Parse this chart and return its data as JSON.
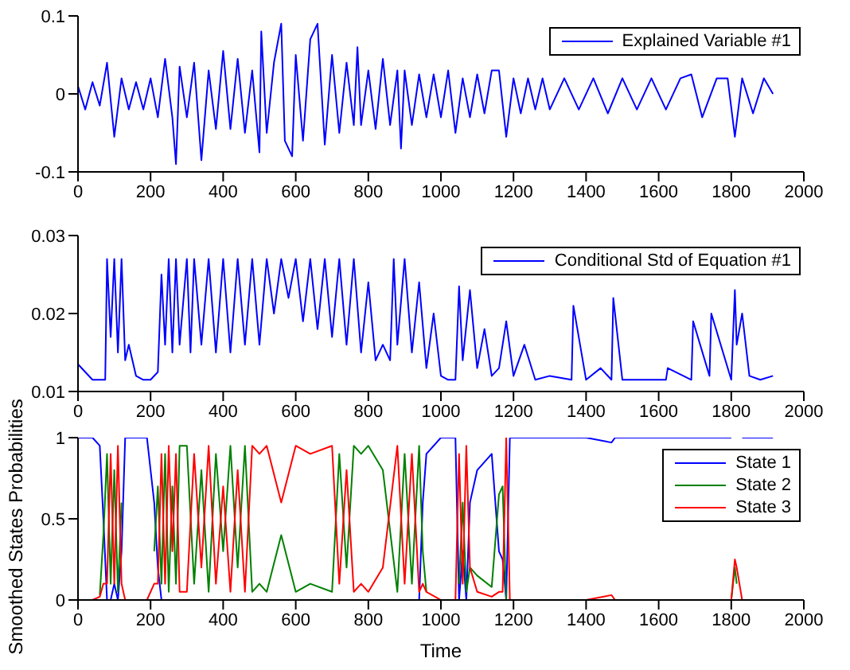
{
  "chart_data": [
    {
      "type": "line",
      "x": [
        0,
        20,
        40,
        60,
        80,
        100,
        120,
        140,
        160,
        180,
        200,
        220,
        240,
        260,
        270,
        280,
        300,
        320,
        340,
        360,
        380,
        400,
        420,
        440,
        460,
        480,
        500,
        505,
        520,
        540,
        560,
        570,
        590,
        600,
        620,
        640,
        660,
        680,
        700,
        720,
        740,
        760,
        770,
        780,
        800,
        820,
        840,
        860,
        880,
        890,
        900,
        920,
        940,
        960,
        980,
        1000,
        1020,
        1040,
        1060,
        1080,
        1100,
        1120,
        1140,
        1160,
        1180,
        1200,
        1220,
        1240,
        1260,
        1280,
        1300,
        1340,
        1380,
        1420,
        1460,
        1500,
        1540,
        1580,
        1620,
        1660,
        1690,
        1720,
        1760,
        1790,
        1810,
        1830,
        1860,
        1890,
        1915
      ],
      "series": [
        {
          "name": "Explained Variable #1",
          "color": "#0000ff",
          "values": [
            0.01,
            -0.02,
            0.015,
            -0.015,
            0.04,
            -0.055,
            0.02,
            -0.02,
            0.015,
            -0.02,
            0.02,
            -0.03,
            0.045,
            -0.03,
            -0.09,
            0.035,
            -0.03,
            0.04,
            -0.085,
            0.03,
            -0.045,
            0.055,
            -0.045,
            0.045,
            -0.05,
            0.03,
            -0.075,
            0.08,
            -0.05,
            0.04,
            0.09,
            -0.06,
            -0.08,
            0.05,
            -0.06,
            0.07,
            0.09,
            -0.065,
            0.05,
            -0.05,
            0.04,
            -0.04,
            0.06,
            -0.04,
            0.03,
            -0.045,
            0.045,
            -0.04,
            0.03,
            -0.07,
            0.03,
            -0.04,
            0.025,
            -0.03,
            0.025,
            -0.03,
            0.03,
            -0.05,
            0.02,
            -0.03,
            0.025,
            -0.025,
            0.03,
            0.03,
            -0.055,
            0.02,
            -0.025,
            0.02,
            -0.02,
            0.02,
            -0.02,
            0.02,
            -0.02,
            0.02,
            -0.025,
            0.02,
            -0.02,
            0.02,
            -0.02,
            0.02,
            0.025,
            -0.03,
            0.02,
            0.02,
            -0.055,
            0.02,
            -0.025,
            0.02,
            0
          ]
        }
      ],
      "xlim": [
        0,
        2000
      ],
      "xticks": [
        0,
        200,
        400,
        600,
        800,
        1000,
        1200,
        1400,
        1600,
        1800,
        2000
      ],
      "ylim": [
        -0.1,
        0.1
      ],
      "yticks": [
        -0.1,
        0,
        0.1
      ],
      "legend": "top right",
      "grid": false
    },
    {
      "type": "line",
      "x": [
        0,
        20,
        40,
        60,
        75,
        80,
        90,
        100,
        110,
        120,
        130,
        140,
        160,
        180,
        200,
        220,
        230,
        240,
        250,
        260,
        270,
        280,
        300,
        310,
        320,
        340,
        360,
        380,
        400,
        420,
        440,
        460,
        480,
        500,
        520,
        540,
        560,
        580,
        600,
        620,
        640,
        660,
        680,
        700,
        720,
        740,
        760,
        780,
        800,
        820,
        840,
        860,
        870,
        880,
        900,
        920,
        940,
        960,
        980,
        1000,
        1020,
        1040,
        1050,
        1060,
        1080,
        1100,
        1120,
        1140,
        1160,
        1180,
        1200,
        1230,
        1260,
        1300,
        1360,
        1365,
        1400,
        1440,
        1470,
        1475,
        1500,
        1560,
        1620,
        1625,
        1690,
        1695,
        1740,
        1745,
        1800,
        1810,
        1815,
        1830,
        1850,
        1880,
        1915
      ],
      "series": [
        {
          "name": "Conditional Std of Equation #1",
          "color": "#0000ff",
          "values": [
            0.0135,
            0.0125,
            0.0115,
            0.0115,
            0.0115,
            0.027,
            0.017,
            0.027,
            0.015,
            0.027,
            0.014,
            0.016,
            0.012,
            0.0115,
            0.0115,
            0.0125,
            0.025,
            0.016,
            0.027,
            0.015,
            0.027,
            0.016,
            0.027,
            0.015,
            0.027,
            0.016,
            0.027,
            0.015,
            0.027,
            0.015,
            0.027,
            0.016,
            0.027,
            0.016,
            0.027,
            0.02,
            0.027,
            0.022,
            0.027,
            0.019,
            0.027,
            0.018,
            0.027,
            0.017,
            0.027,
            0.016,
            0.027,
            0.015,
            0.024,
            0.014,
            0.016,
            0.014,
            0.027,
            0.016,
            0.027,
            0.015,
            0.024,
            0.013,
            0.02,
            0.012,
            0.0115,
            0.0115,
            0.0235,
            0.014,
            0.023,
            0.013,
            0.018,
            0.012,
            0.013,
            0.019,
            0.012,
            0.016,
            0.0115,
            0.012,
            0.0115,
            0.021,
            0.0115,
            0.013,
            0.0115,
            0.022,
            0.0115,
            0.0115,
            0.0115,
            0.013,
            0.0115,
            0.019,
            0.012,
            0.02,
            0.0115,
            0.023,
            0.016,
            0.02,
            0.012,
            0.0115,
            0.012
          ]
        }
      ],
      "xlim": [
        0,
        2000
      ],
      "xticks": [
        0,
        200,
        400,
        600,
        800,
        1000,
        1200,
        1400,
        1600,
        1800,
        2000
      ],
      "ylim": [
        0.01,
        0.03
      ],
      "yticks": [
        0.01,
        0.02,
        0.03
      ],
      "legend": "top right",
      "grid": false
    },
    {
      "type": "line",
      "xlabel": "Time",
      "ylabel": "Smoothed States Probabilities",
      "x": [
        0,
        40,
        60,
        70,
        80,
        90,
        100,
        110,
        120,
        130,
        150,
        190,
        210,
        220,
        230,
        240,
        250,
        260,
        270,
        280,
        300,
        320,
        340,
        360,
        380,
        400,
        420,
        440,
        460,
        480,
        500,
        520,
        560,
        600,
        640,
        700,
        720,
        740,
        760,
        780,
        800,
        840,
        880,
        900,
        920,
        940,
        950,
        960,
        1000,
        1040,
        1050,
        1060,
        1070,
        1080,
        1100,
        1140,
        1160,
        1170,
        1180,
        1190,
        1200,
        1400,
        1470,
        1480,
        1800,
        1810,
        1815,
        1830,
        1915
      ],
      "series": [
        {
          "name": "State 1",
          "color": "#0000ff",
          "values": [
            1,
            1,
            0.95,
            0.5,
            0,
            0,
            0.1,
            0,
            0.3,
            1,
            1,
            1,
            0.6,
            0.2,
            0,
            0,
            0,
            0,
            0,
            0,
            0,
            0,
            0,
            0,
            0,
            0,
            0,
            0,
            0,
            0,
            0,
            0,
            0,
            0,
            0,
            0,
            0,
            0,
            0,
            0,
            0,
            0,
            0,
            0,
            0,
            0,
            0.6,
            0.9,
            1,
            1,
            0,
            0.3,
            0,
            0.6,
            0.8,
            0.9,
            0.3,
            0.25,
            0,
            1,
            1,
            1,
            0.97,
            1,
            1,
            null,
            null,
            1,
            1
          ]
        },
        {
          "name": "State 2",
          "color": "#008000",
          "values": [
            null,
            null,
            0.03,
            0.4,
            0.9,
            0.1,
            0.8,
            0.05,
            0.6,
            null,
            null,
            null,
            0.3,
            0.7,
            0.1,
            0.9,
            0.05,
            0.7,
            0.1,
            0.95,
            0.95,
            0.1,
            0.8,
            0.05,
            0.9,
            0.3,
            0.95,
            0.2,
            0.95,
            0.05,
            0.1,
            0.05,
            0.4,
            0.05,
            0.1,
            0.05,
            0.9,
            0.2,
            0.95,
            0.9,
            0.95,
            0.8,
            0.05,
            0.9,
            0.1,
            0.95,
            0.3,
            0.05,
            null,
            null,
            0.1,
            0.6,
            0.05,
            0.2,
            0.15,
            0.08,
            0.65,
            0.7,
            0,
            null,
            null,
            null,
            null,
            null,
            0,
            0.2,
            0.1,
            null,
            null
          ]
        },
        {
          "name": "State 3",
          "color": "#ff0000",
          "values": [
            0,
            0,
            0.02,
            0.1,
            0.1,
            0.9,
            0.1,
            0.95,
            0.1,
            0,
            0,
            0,
            0.1,
            0.1,
            0.9,
            0.1,
            0.95,
            0.3,
            0.9,
            0.05,
            0.05,
            0.9,
            0.2,
            0.95,
            0.1,
            0.7,
            0.05,
            0.8,
            0.05,
            0.95,
            0.9,
            0.95,
            0.6,
            0.95,
            0.9,
            0.95,
            0.1,
            0.8,
            0.05,
            0.1,
            0.05,
            0.2,
            0.95,
            0.1,
            0.9,
            0.05,
            0.1,
            0.05,
            0,
            0,
            0.9,
            0.1,
            0.95,
            0.2,
            0.05,
            0.02,
            0.05,
            0.05,
            1,
            0,
            0,
            0,
            0.03,
            0,
            0,
            0.25,
            0.2,
            0,
            0
          ]
        }
      ],
      "xlim": [
        0,
        2000
      ],
      "xticks": [
        0,
        200,
        400,
        600,
        800,
        1000,
        1200,
        1400,
        1600,
        1800,
        2000
      ],
      "ylim": [
        0,
        1
      ],
      "yticks": [
        0,
        0.5,
        1
      ],
      "legend": "top right",
      "grid": false
    }
  ]
}
